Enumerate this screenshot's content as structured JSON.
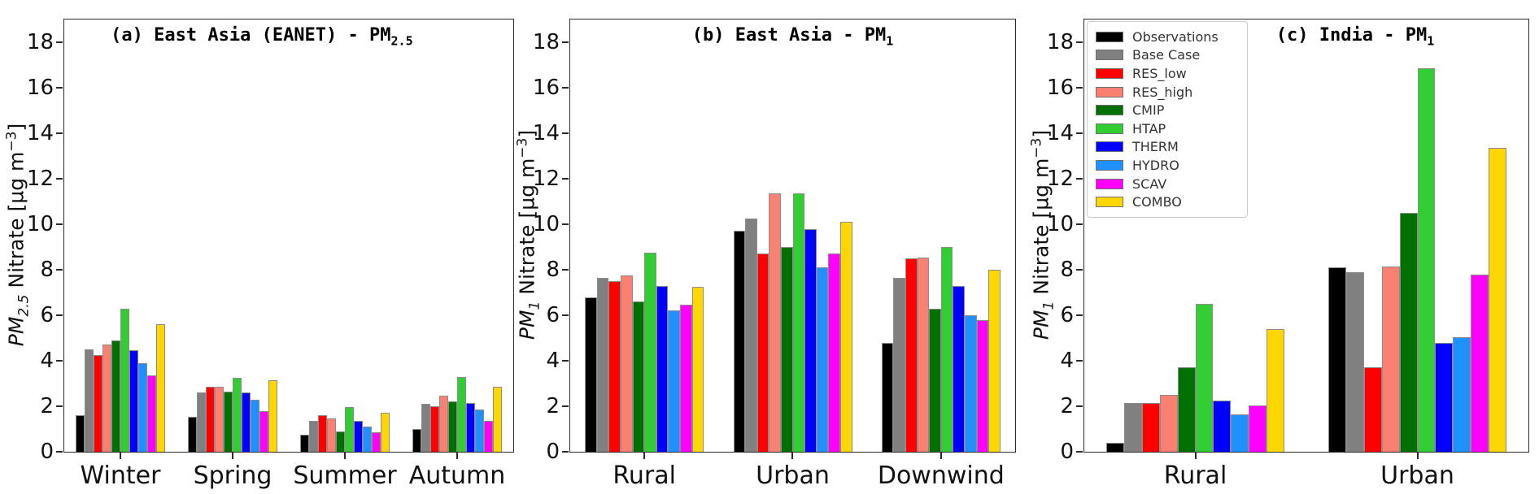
{
  "figure": {
    "background": "#ffffff"
  },
  "legend": {
    "position": "top-left-of-panel-c",
    "entries": [
      {
        "label": "Observations",
        "color": "#000000"
      },
      {
        "label": "Base Case",
        "color": "#808080"
      },
      {
        "label": "RES_low",
        "color": "#ff0000"
      },
      {
        "label": "RES_high",
        "color": "#fa8072"
      },
      {
        "label": "CMIP",
        "color": "#007000"
      },
      {
        "label": "HTAP",
        "color": "#32cd32"
      },
      {
        "label": "THERM",
        "color": "#0000ff"
      },
      {
        "label": "HYDRO",
        "color": "#1e90ff"
      },
      {
        "label": "SCAV",
        "color": "#ff00ff"
      },
      {
        "label": "COMBO",
        "color": "#ffd700"
      }
    ]
  },
  "chart_data": [
    {
      "type": "bar",
      "panel": "a",
      "title_main": "(a) East Asia (EANET) - PM",
      "title_sub": "2.5",
      "ylabel_pm": "PM",
      "ylabel_pm_sub": "2.5",
      "ylabel_rest": " Nitrate  [µg m",
      "ylabel_sup": "−3",
      "ylabel_close": "]",
      "categories": [
        "Winter",
        "Spring",
        "Summer",
        "Autumn"
      ],
      "ylim": [
        0,
        19
      ],
      "yticks": [
        0,
        2,
        4,
        6,
        8,
        10,
        12,
        14,
        16,
        18
      ],
      "grid": false,
      "series": [
        {
          "name": "Observations",
          "values": [
            1.6,
            1.55,
            0.75,
            1.0
          ]
        },
        {
          "name": "Base Case",
          "values": [
            4.5,
            2.6,
            1.35,
            2.1
          ]
        },
        {
          "name": "RES_low",
          "values": [
            4.25,
            2.85,
            1.6,
            2.0
          ]
        },
        {
          "name": "RES_high",
          "values": [
            4.7,
            2.85,
            1.45,
            2.45
          ]
        },
        {
          "name": "CMIP",
          "values": [
            4.9,
            2.65,
            0.9,
            2.2
          ]
        },
        {
          "name": "HTAP",
          "values": [
            6.3,
            3.25,
            1.95,
            3.3
          ]
        },
        {
          "name": "THERM",
          "values": [
            4.45,
            2.6,
            1.35,
            2.15
          ]
        },
        {
          "name": "HYDRO",
          "values": [
            3.9,
            2.3,
            1.1,
            1.85
          ]
        },
        {
          "name": "SCAV",
          "values": [
            3.35,
            1.8,
            0.85,
            1.35
          ]
        },
        {
          "name": "COMBO",
          "values": [
            5.6,
            3.15,
            1.7,
            2.85
          ]
        }
      ]
    },
    {
      "type": "bar",
      "panel": "b",
      "title_main": "(b) East Asia - PM",
      "title_sub": "1",
      "ylabel_pm": "PM",
      "ylabel_pm_sub": "1",
      "ylabel_rest": " Nitrate  [µg m",
      "ylabel_sup": "−3",
      "ylabel_close": "]",
      "categories": [
        "Rural",
        "Urban",
        "Downwind"
      ],
      "ylim": [
        0,
        19
      ],
      "yticks": [
        0,
        2,
        4,
        6,
        8,
        10,
        12,
        14,
        16,
        18
      ],
      "grid": false,
      "series": [
        {
          "name": "Observations",
          "values": [
            6.8,
            9.7,
            4.8
          ]
        },
        {
          "name": "Base Case",
          "values": [
            7.65,
            10.25,
            7.65
          ]
        },
        {
          "name": "RES_low",
          "values": [
            7.5,
            8.7,
            8.5
          ]
        },
        {
          "name": "RES_high",
          "values": [
            7.75,
            11.35,
            8.55
          ]
        },
        {
          "name": "CMIP",
          "values": [
            6.6,
            9.0,
            6.3
          ]
        },
        {
          "name": "HTAP",
          "values": [
            8.75,
            11.35,
            9.0
          ]
        },
        {
          "name": "THERM",
          "values": [
            7.3,
            9.8,
            7.3
          ]
        },
        {
          "name": "HYDRO",
          "values": [
            6.2,
            8.1,
            6.0
          ]
        },
        {
          "name": "SCAV",
          "values": [
            6.45,
            8.7,
            5.8
          ]
        },
        {
          "name": "COMBO",
          "values": [
            7.25,
            10.1,
            8.0
          ]
        }
      ]
    },
    {
      "type": "bar",
      "panel": "c",
      "title_main": "(c) India - PM",
      "title_sub": "1",
      "ylabel_pm": "PM",
      "ylabel_pm_sub": "1",
      "ylabel_rest": " Nitrate  [µg m",
      "ylabel_sup": "−3",
      "ylabel_close": "]",
      "categories": [
        "Rural",
        "Urban"
      ],
      "ylim": [
        0,
        19
      ],
      "yticks": [
        0,
        2,
        4,
        6,
        8,
        10,
        12,
        14,
        16,
        18
      ],
      "grid": false,
      "series": [
        {
          "name": "Observations",
          "values": [
            0.4,
            8.1
          ]
        },
        {
          "name": "Base Case",
          "values": [
            2.15,
            7.9
          ]
        },
        {
          "name": "RES_low",
          "values": [
            2.15,
            3.7
          ]
        },
        {
          "name": "RES_high",
          "values": [
            2.5,
            8.15
          ]
        },
        {
          "name": "CMIP",
          "values": [
            3.7,
            10.5
          ]
        },
        {
          "name": "HTAP",
          "values": [
            6.5,
            16.85
          ]
        },
        {
          "name": "THERM",
          "values": [
            2.25,
            4.8
          ]
        },
        {
          "name": "HYDRO",
          "values": [
            1.65,
            5.05
          ]
        },
        {
          "name": "SCAV",
          "values": [
            2.05,
            7.8
          ]
        },
        {
          "name": "COMBO",
          "values": [
            5.4,
            13.35
          ]
        }
      ]
    }
  ]
}
